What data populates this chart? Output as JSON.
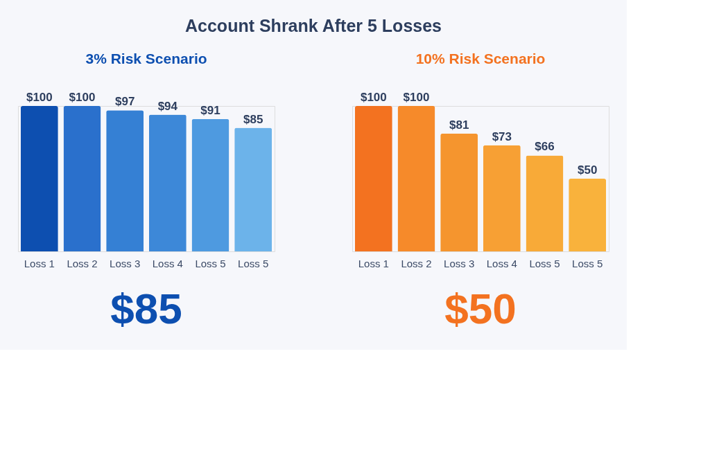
{
  "chart_data": [
    {
      "type": "other",
      "title": "Account Shrank After 5 Losses"
    },
    {
      "type": "bar",
      "title": "3% Risk Scenario",
      "categories": [
        "Loss 1",
        "Loss 2",
        "Loss 3",
        "Loss 4",
        "Loss 5",
        "Loss 5"
      ],
      "values": [
        100,
        100,
        97,
        94,
        91,
        85
      ],
      "value_labels": [
        "$100",
        "$100",
        "$97",
        "$94",
        "$91",
        "$85"
      ],
      "colors": [
        "#0d4fb0",
        "#2a70cc",
        "#3580d4",
        "#3d88d8",
        "#4e9ae0",
        "#6cb3ea"
      ],
      "annotations": [
        "$85"
      ]
    },
    {
      "type": "bar",
      "title": "10% Risk Scenario",
      "categories": [
        "Loss 1",
        "Loss 2",
        "Loss 3",
        "Loss 4",
        "Loss 5",
        "Loss 5"
      ],
      "values": [
        100,
        100,
        81,
        73,
        66,
        50
      ],
      "value_labels": [
        "$100",
        "$100",
        "$81",
        "$73",
        "$66",
        "$50"
      ],
      "colors": [
        "#f37220",
        "#f68a2a",
        "#f5952e",
        "#f7a034",
        "#f8aa38",
        "#f9b23c"
      ],
      "annotations": [
        "$50"
      ]
    }
  ]
}
